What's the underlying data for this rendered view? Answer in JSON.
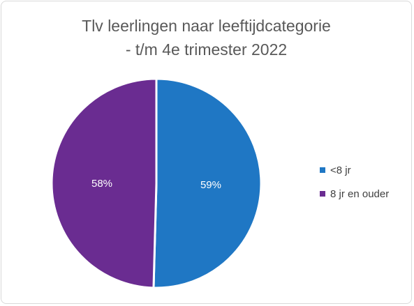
{
  "chart_data": {
    "type": "pie",
    "title_lines": [
      "Tlv leerlingen naar leeftijdcategorie",
      "- t/m 4e trimester 2022"
    ],
    "slices": [
      {
        "name": "<8 jr",
        "value": 59,
        "label": "59%",
        "color": "#1f77c4"
      },
      {
        "name": "8 jr en ouder",
        "value": 58,
        "label": "58%",
        "color": "#6a2c91"
      }
    ],
    "legend_position": "right",
    "data_label_color": "#ffffff",
    "slice_border_color": "#ffffff"
  }
}
